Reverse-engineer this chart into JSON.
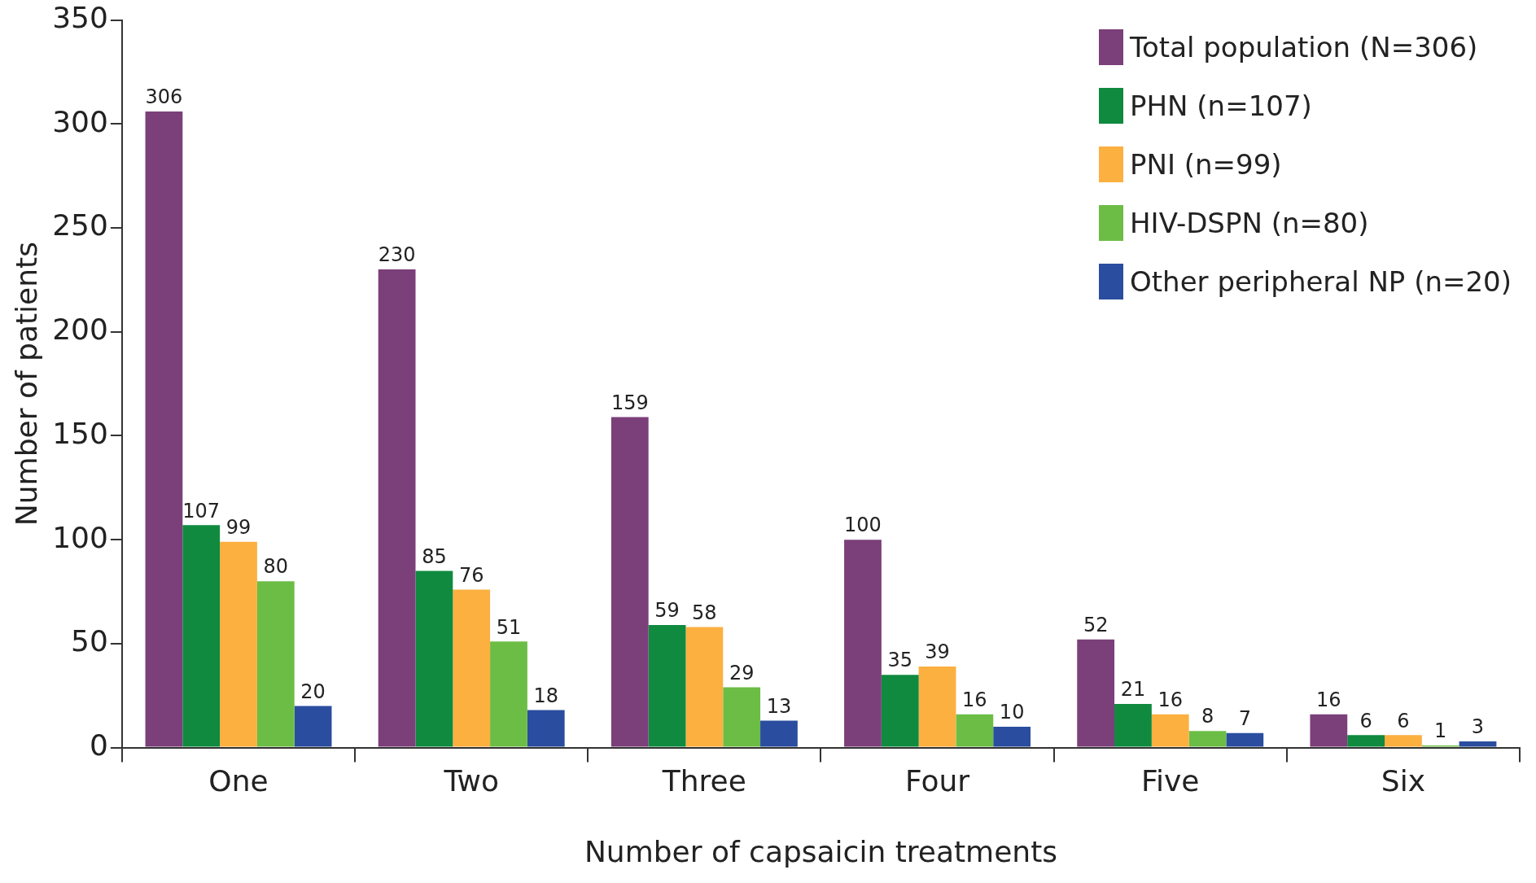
{
  "chart_data": {
    "type": "bar",
    "xlabel": "Number of capsaicin treatments",
    "ylabel": "Number of patients",
    "categories": [
      "One",
      "Two",
      "Three",
      "Four",
      "Five",
      "Six"
    ],
    "series": [
      {
        "name": "Total population (N=306)",
        "color": "#7b3f7a",
        "values": [
          306,
          230,
          159,
          100,
          52,
          16
        ]
      },
      {
        "name": "PHN (n=107)",
        "color": "#0f8a3f",
        "values": [
          107,
          85,
          59,
          35,
          21,
          6
        ]
      },
      {
        "name": "PNI (n=99)",
        "color": "#fbb040",
        "values": [
          99,
          76,
          58,
          39,
          16,
          6
        ]
      },
      {
        "name": "HIV-DSPN (n=80)",
        "color": "#6cbd45",
        "values": [
          80,
          51,
          29,
          16,
          8,
          1
        ]
      },
      {
        "name": "Other peripheral NP (n=20)",
        "color": "#2a4d9f",
        "values": [
          20,
          18,
          13,
          10,
          7,
          3
        ]
      }
    ],
    "ylim": [
      0,
      350
    ],
    "yticks": [
      0,
      50,
      100,
      150,
      200,
      250,
      300,
      350
    ],
    "grid": false,
    "legend": "top right",
    "data_labels": true
  }
}
